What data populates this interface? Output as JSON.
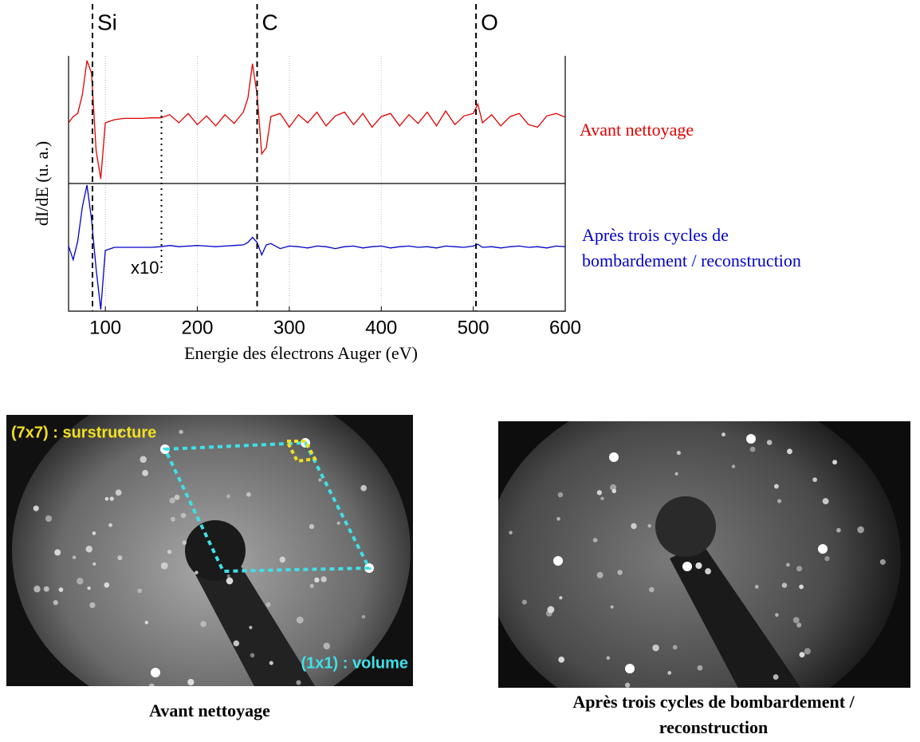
{
  "chart_data": {
    "type": "line",
    "xlabel": "Energie des électrons Auger (eV)",
    "ylabel": "dI/dE (u. a.)",
    "xlim": [
      60,
      600
    ],
    "xticks": [
      100,
      200,
      300,
      400,
      500,
      600
    ],
    "ylim": [
      -1,
      1
    ],
    "grid": true,
    "x": [
      60,
      65,
      70,
      75,
      80,
      85,
      90,
      95,
      100,
      110,
      120,
      130,
      140,
      150,
      160,
      170,
      180,
      190,
      200,
      210,
      220,
      230,
      240,
      250,
      255,
      260,
      265,
      270,
      275,
      280,
      290,
      300,
      310,
      320,
      330,
      340,
      350,
      360,
      370,
      380,
      390,
      400,
      410,
      420,
      430,
      440,
      450,
      460,
      470,
      480,
      490,
      500,
      505,
      510,
      520,
      530,
      540,
      550,
      560,
      570,
      580,
      590,
      600
    ],
    "series": [
      {
        "name": "Avant nettoyage",
        "color": "#e00000",
        "values": [
          -0.05,
          0.05,
          0.1,
          0.4,
          0.95,
          0.75,
          -0.5,
          -0.95,
          -0.05,
          0,
          0.02,
          0.02,
          0.02,
          0.03,
          0.03,
          0.08,
          -0.05,
          0.1,
          -0.08,
          0.06,
          -0.1,
          0.08,
          -0.06,
          0.12,
          0.35,
          0.9,
          0.4,
          -0.55,
          -0.45,
          0.05,
          0.1,
          -0.12,
          0.08,
          -0.05,
          0.12,
          -0.1,
          0.06,
          0.12,
          -0.08,
          0.1,
          -0.12,
          0.05,
          0.1,
          -0.1,
          0.08,
          -0.06,
          0.12,
          -0.1,
          0.14,
          -0.08,
          0.06,
          0.1,
          0.25,
          -0.05,
          0.08,
          -0.1,
          0.05,
          0.1,
          -0.08,
          -0.12,
          0.06,
          0.1,
          0.04
        ]
      },
      {
        "name": "Après trois cycles de bombardement / reconstruction",
        "color": "#0000c8",
        "values": [
          0.02,
          -0.2,
          0.1,
          0.65,
          1.0,
          0.45,
          -0.35,
          -1.0,
          -0.05,
          0,
          0,
          0,
          0,
          0,
          0.01,
          0.03,
          0.01,
          0.02,
          0.03,
          0.02,
          0.01,
          0.02,
          0.03,
          0.04,
          0.08,
          0.16,
          0.08,
          -0.12,
          0.04,
          0.06,
          -0.02,
          0.02,
          0.01,
          -0.01,
          0.02,
          0.01,
          -0.02,
          0.01,
          0.02,
          -0.01,
          0.01,
          0.02,
          -0.01,
          0.01,
          0.02,
          0,
          0.01,
          -0.01,
          0.02,
          0.01,
          0,
          0.02,
          0.05,
          0,
          0.01,
          -0.01,
          0.01,
          0.02,
          0,
          0.01,
          -0.01,
          0.02,
          0.01
        ]
      }
    ],
    "annotations": [
      {
        "label": "Si",
        "x": 86
      },
      {
        "label": "C",
        "x": 265
      },
      {
        "label": "O",
        "x": 503
      }
    ],
    "scale_note": {
      "label": "x10",
      "x": 161
    }
  },
  "images": [
    {
      "caption": "Avant nettoyage",
      "labels": [
        "(7x7) : surstructure",
        "(1x1) : volume"
      ]
    },
    {
      "caption": "Après trois cycles de bombardement / reconstruction"
    }
  ]
}
